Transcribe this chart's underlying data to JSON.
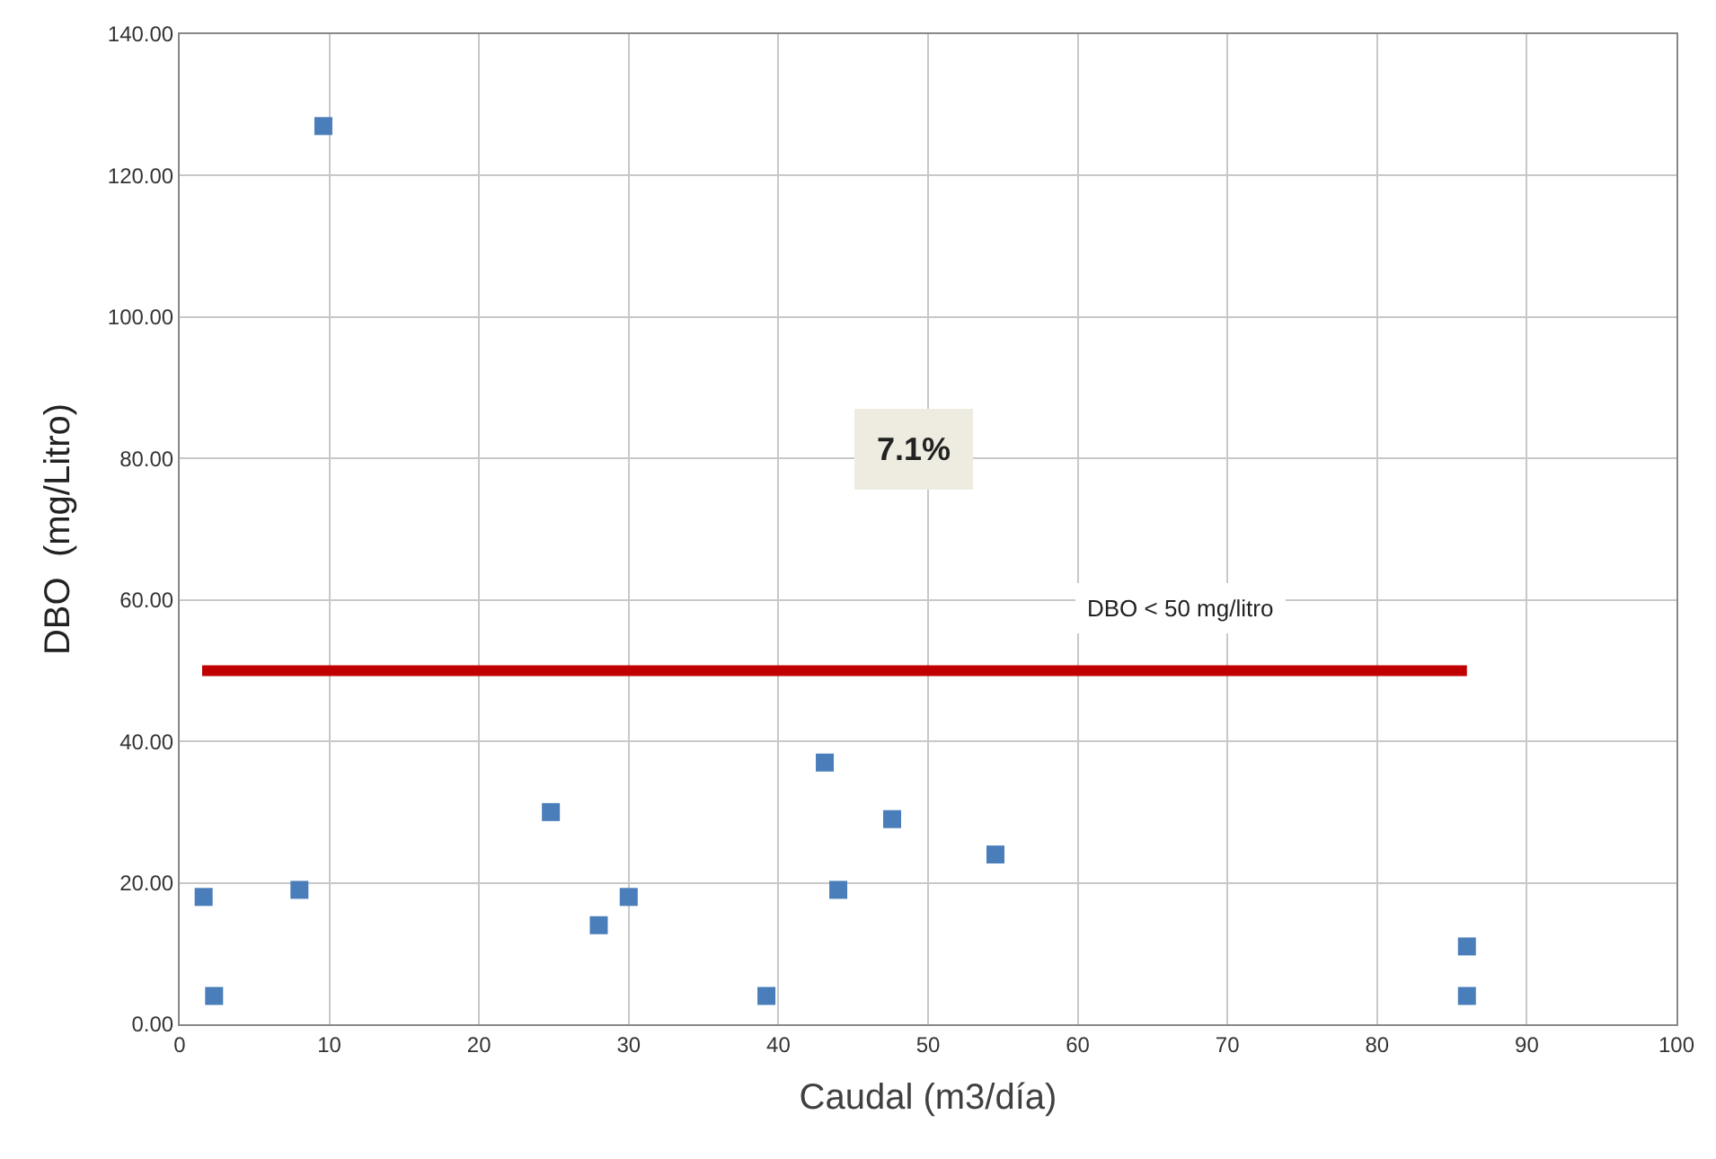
{
  "chart_data": {
    "type": "scatter",
    "xlabel": "Caudal (m3/día)",
    "ylabel": "DBO  (mg/Litro)",
    "series": [
      {
        "color": "#4a7ebb",
        "marker": "square",
        "x": [
          9.6,
          1.6,
          2.3,
          8.0,
          24.8,
          28.0,
          30.0,
          39.2,
          43.1,
          44.0,
          47.6,
          54.5,
          86.0,
          86.0
        ],
        "values": [
          127,
          18,
          4,
          19,
          30,
          14,
          18,
          4,
          37,
          19,
          29,
          24,
          11,
          4
        ]
      },
      {
        "type": "line",
        "color": "#c00000",
        "line_style": "solid",
        "x": [
          1.5,
          86
        ],
        "values": [
          50,
          50
        ]
      }
    ],
    "xlim": [
      0,
      100
    ],
    "xticks": [
      0,
      10,
      20,
      30,
      40,
      50,
      60,
      70,
      80,
      90,
      100
    ],
    "ylim": [
      0,
      140
    ],
    "yticks": [
      {
        "value": 0,
        "label": "0.00"
      },
      {
        "value": 20,
        "label": "20.00"
      },
      {
        "value": 40,
        "label": "40.00"
      },
      {
        "value": 60,
        "label": "60.00"
      },
      {
        "value": 80,
        "label": "80.00"
      },
      {
        "value": 100,
        "label": "100.00"
      },
      {
        "value": 120,
        "label": "120.00"
      },
      {
        "value": 140,
        "label": "140.00"
      }
    ],
    "grid": true,
    "legend": false,
    "annotations": [
      "7.1%",
      "DBO < 50 mg/litro"
    ]
  }
}
